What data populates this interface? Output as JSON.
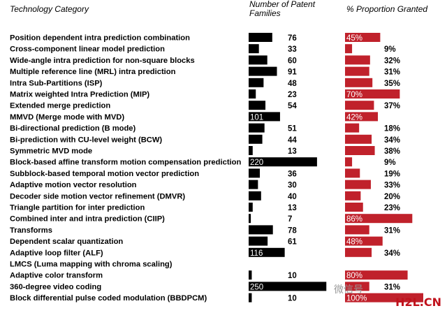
{
  "headers": {
    "category": "Technology Category",
    "patents": "Number of Patent Families",
    "granted": "% Proportion Granted"
  },
  "colors": {
    "patent_bar": "#000000",
    "granted_bar": "#c0212b"
  },
  "watermark": {
    "wechat": "微信号",
    "logo": "H2L.CN"
  },
  "chart_data": {
    "type": "bar",
    "title": "",
    "categories": [
      "Position dependent intra prediction combination",
      "Cross-component linear model prediction",
      "Wide-angle intra prediction for non-square blocks",
      "Multiple reference line (MRL) intra prediction",
      "Intra Sub-Partitions (ISP)",
      "Matrix weighted Intra Prediction (MIP)",
      "Extended merge prediction",
      "MMVD (Merge mode with MVD)",
      "Bi-directional prediction (B mode)",
      "Bi-prediction with CU-level weight (BCW)",
      "Symmetric MVD mode",
      "Block-based affine transform motion compensation prediction",
      "Subblock-based temporal motion vector prediction",
      "Adaptive motion vector resolution",
      "Decoder side motion vector refinement (DMVR)",
      "Triangle partition for inter prediction",
      "Combined inter and intra prediction (CIIP)",
      "Transforms",
      "Dependent scalar quantization",
      "Adaptive loop filter (ALF)",
      "LMCS (Luma mapping with chroma scaling)",
      "Adaptive color transform",
      "360-degree video coding",
      "Block differential pulse coded modulation (BBDPCM)"
    ],
    "series": [
      {
        "name": "Number of Patent Families",
        "values": [
          76,
          33,
          60,
          91,
          48,
          23,
          54,
          101,
          51,
          44,
          13,
          220,
          36,
          30,
          40,
          13,
          7,
          78,
          61,
          116,
          null,
          10,
          250,
          10
        ],
        "labels": [
          "76",
          "33",
          "60",
          "91",
          "48",
          "23",
          "54",
          "101",
          "51",
          "44",
          "13",
          "220",
          "36",
          "30",
          "40",
          "13",
          "7",
          "78",
          "61",
          "116",
          "",
          "10",
          "250",
          "10"
        ]
      },
      {
        "name": "% Proportion Granted",
        "values": [
          45,
          9,
          32,
          31,
          35,
          70,
          37,
          42,
          18,
          34,
          38,
          9,
          19,
          33,
          20,
          23,
          86,
          31,
          48,
          34,
          null,
          80,
          31,
          100
        ],
        "labels": [
          "45%",
          "9%",
          "32%",
          "31%",
          "35%",
          "70%",
          "37%",
          "42%",
          "18%",
          "34%",
          "38%",
          "9%",
          "19%",
          "33%",
          "20%",
          "23%",
          "86%",
          "31%",
          "48%",
          "34%",
          "",
          "80%",
          "31%",
          "100%"
        ]
      }
    ]
  }
}
